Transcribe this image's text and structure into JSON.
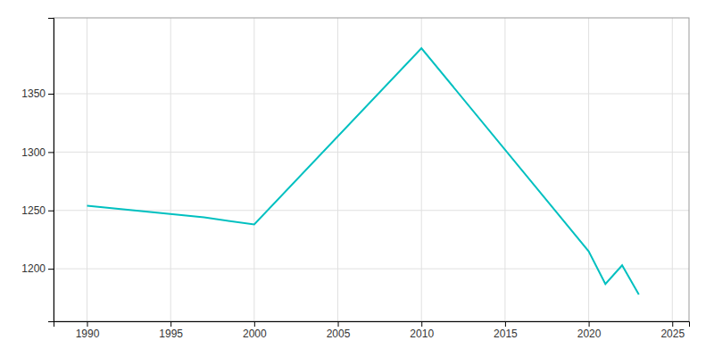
{
  "chart_data": {
    "type": "line",
    "x": [
      1990,
      1997,
      2000,
      2010,
      2020,
      2021,
      2022,
      2023
    ],
    "values": [
      1254,
      1244,
      1238,
      1389,
      1215,
      1187,
      1203,
      1178
    ],
    "color": "#00C0C0",
    "xlim": [
      1988,
      2026
    ],
    "ylim": [
      1155,
      1415
    ],
    "xticks": [
      1990,
      1995,
      2000,
      2005,
      2010,
      2015,
      2020,
      2025
    ],
    "yticks": [
      1200,
      1250,
      1300,
      1350
    ],
    "grid": true
  }
}
